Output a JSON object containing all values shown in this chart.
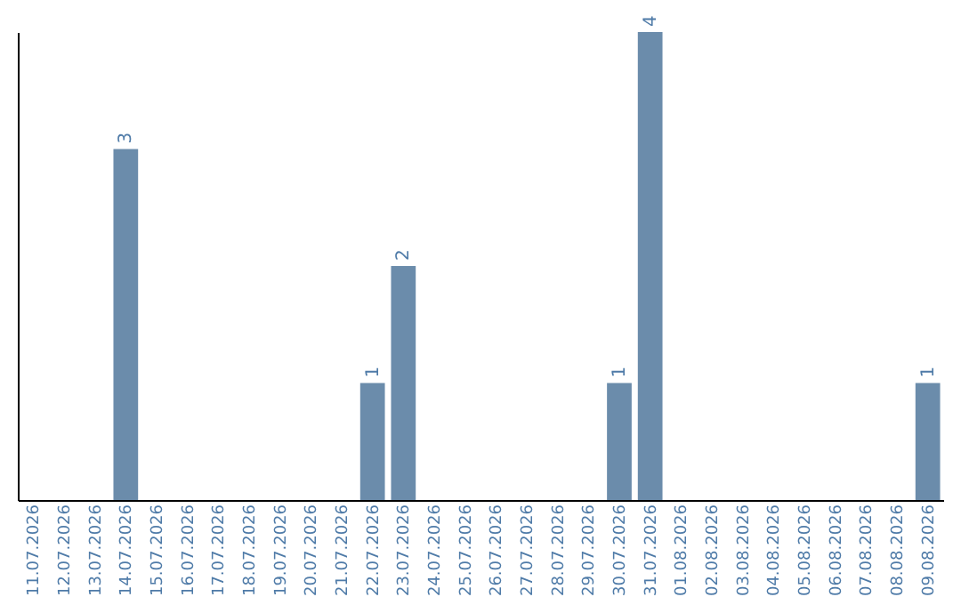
{
  "chart_data": {
    "type": "bar",
    "categories": [
      "11.07.2026",
      "12.07.2026",
      "13.07.2026",
      "14.07.2026",
      "15.07.2026",
      "16.07.2026",
      "17.07.2026",
      "18.07.2026",
      "19.07.2026",
      "20.07.2026",
      "21.07.2026",
      "22.07.2026",
      "23.07.2026",
      "24.07.2026",
      "25.07.2026",
      "26.07.2026",
      "27.07.2026",
      "28.07.2026",
      "29.07.2026",
      "30.07.2026",
      "31.07.2026",
      "01.08.2026",
      "02.08.2026",
      "03.08.2026",
      "04.08.2026",
      "05.08.2026",
      "06.08.2026",
      "07.08.2026",
      "08.08.2026",
      "09.08.2026"
    ],
    "values": [
      null,
      null,
      null,
      3,
      null,
      null,
      null,
      null,
      null,
      null,
      null,
      1,
      2,
      null,
      null,
      null,
      null,
      null,
      null,
      1,
      4,
      null,
      null,
      null,
      null,
      null,
      null,
      null,
      null,
      1
    ],
    "color": "#6b8cab",
    "data_labels": true,
    "tick_labels": "x",
    "grid": false
  }
}
